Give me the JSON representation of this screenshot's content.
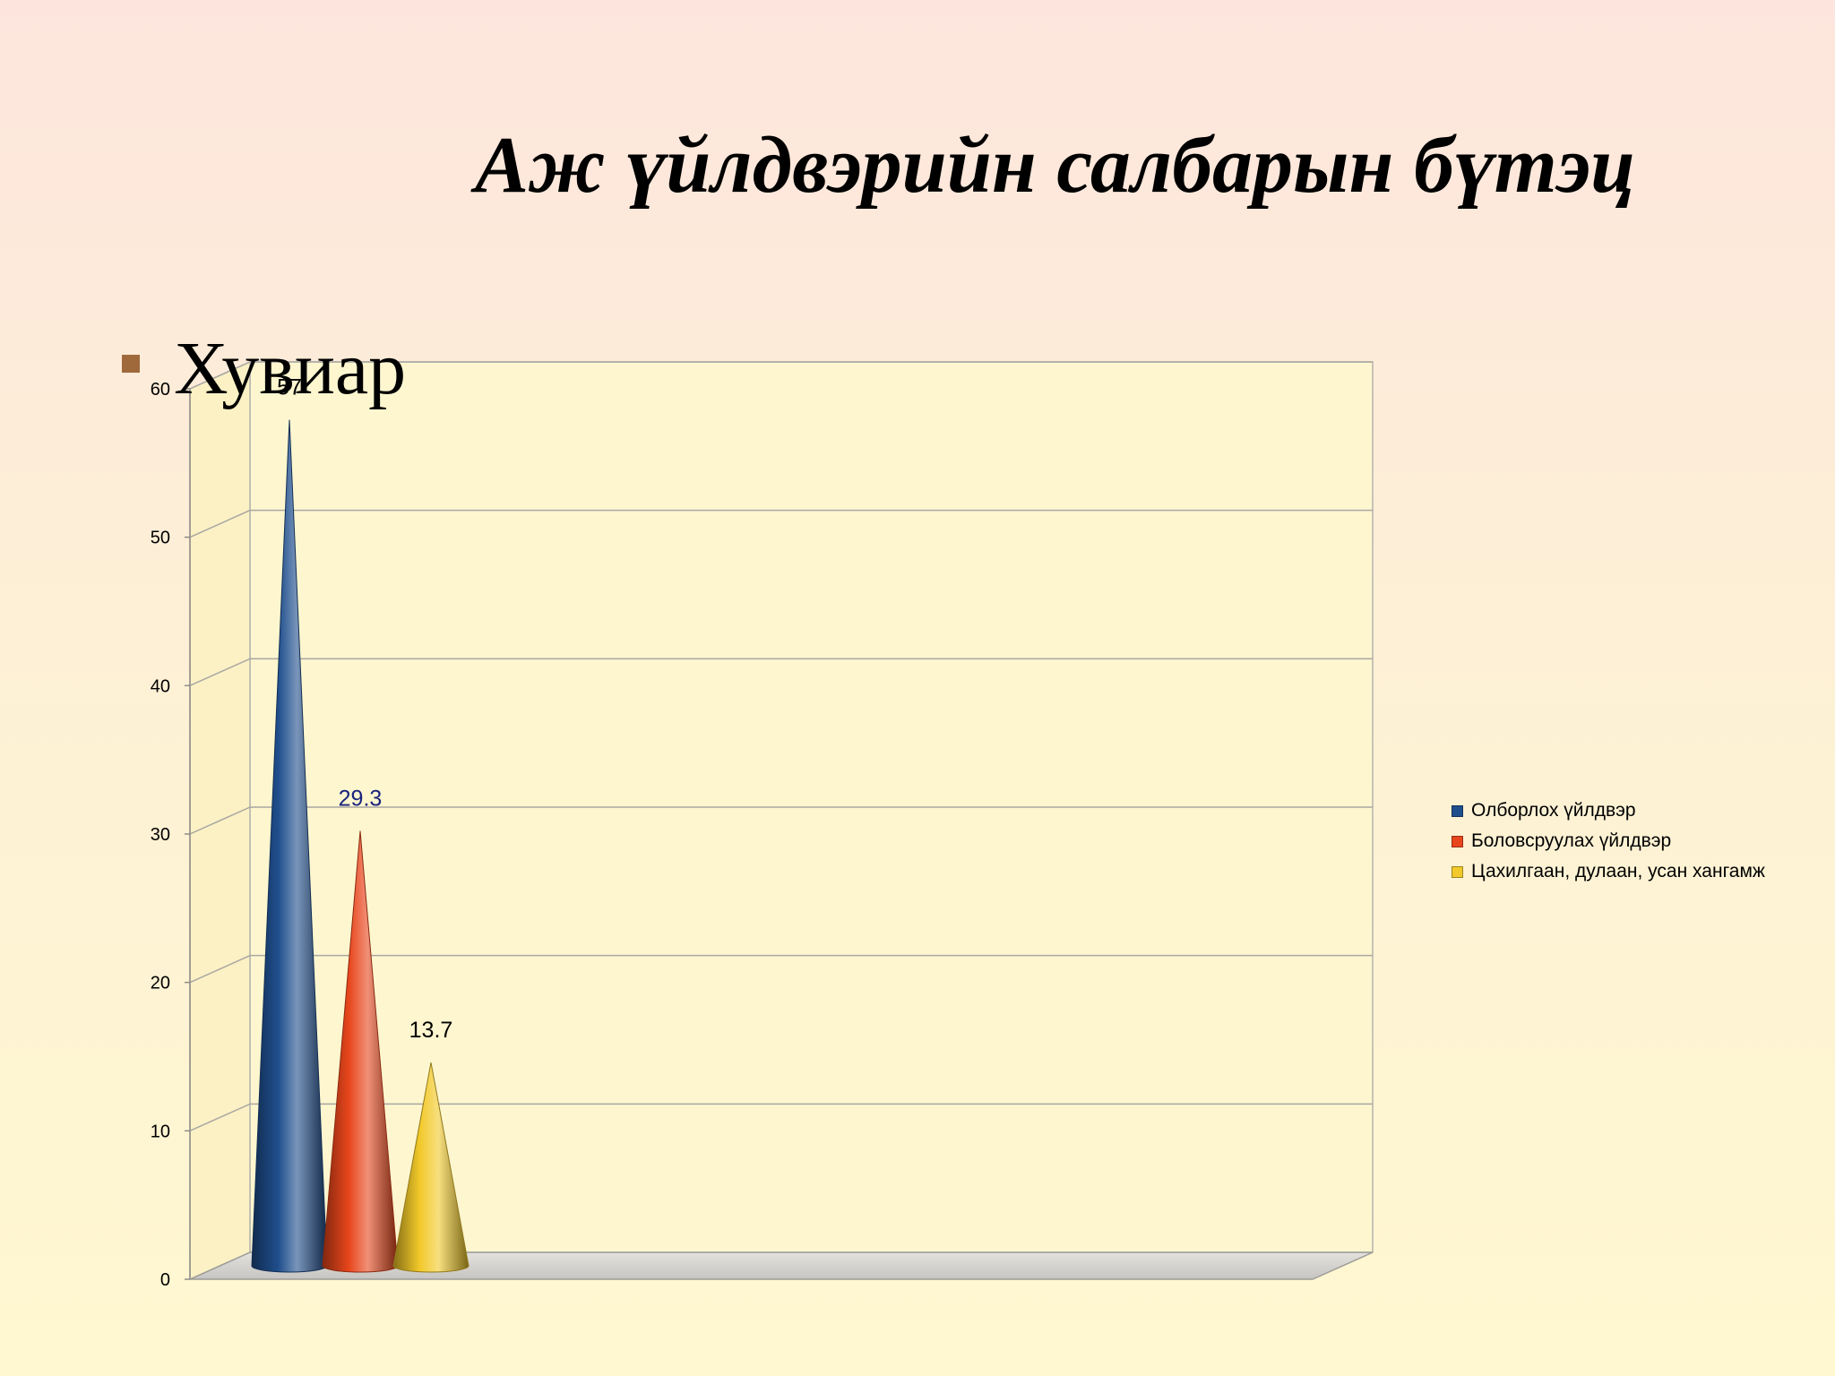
{
  "slide": {
    "title": "Аж үйлдвэрийн салбарын бүтэц",
    "bullet": "Хувиар"
  },
  "chart_data": {
    "type": "bar",
    "style": "3d-cone",
    "title": "",
    "xlabel": "",
    "ylabel": "",
    "ylim": [
      0,
      60
    ],
    "yticks": [
      0,
      10,
      20,
      30,
      40,
      50,
      60
    ],
    "grid": true,
    "legend_position": "right",
    "series": [
      {
        "name": "Олборлох үйлдвэр",
        "value": 57,
        "label": "57",
        "color": "#1f4e8c",
        "label_color": "#000000"
      },
      {
        "name": "Боловсруулах үйлдвэр",
        "value": 29.3,
        "label": "29.3",
        "color": "#e8461c",
        "label_color": "#1a237e"
      },
      {
        "name": "Цахилгаан, дулаан, усан хангамж",
        "value": 13.7,
        "label": "13.7",
        "color": "#f2c92a",
        "label_color": "#000000"
      }
    ]
  }
}
